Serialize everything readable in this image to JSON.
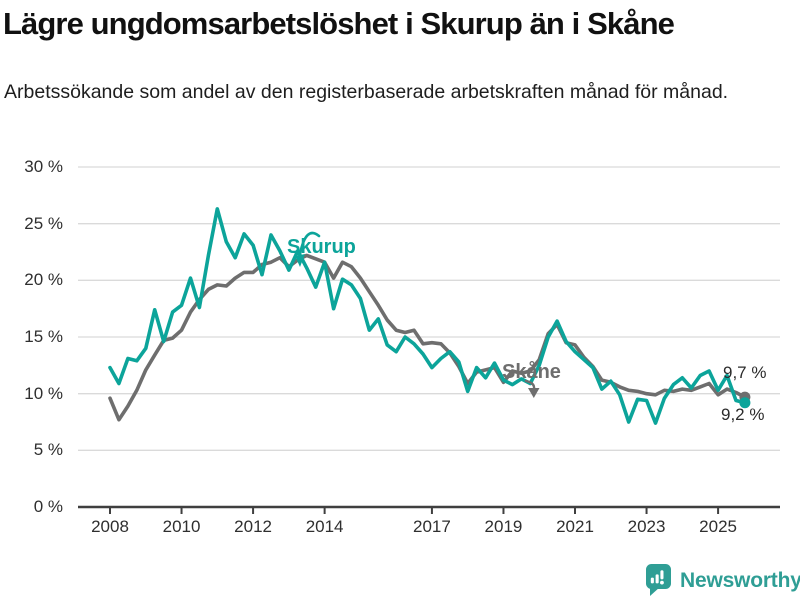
{
  "chart_data": {
    "type": "line",
    "title": "Lägre ungdomsarbetslöshet i Skurup än i Skåne",
    "subtitle": "Arbetssökande som andel av den registerbaserade arbetskraften månad för månad.",
    "unit": "%",
    "xlim": [
      2007.1,
      2026.7
    ],
    "ylim": [
      0,
      30
    ],
    "grid": true,
    "legend_position": "inline-labels",
    "colors": {
      "grid": "#dadada",
      "axis": "#3f3f3f",
      "tick_text": "#2f2f2f",
      "annotation_text": "#2b2b2b"
    },
    "y_ticks": [
      {
        "value": 0,
        "label": "0 %"
      },
      {
        "value": 5,
        "label": "5 %"
      },
      {
        "value": 10,
        "label": "10 %"
      },
      {
        "value": 15,
        "label": "15 %"
      },
      {
        "value": 20,
        "label": "20 %"
      },
      {
        "value": 25,
        "label": "25 %"
      },
      {
        "value": 30,
        "label": "30 %"
      }
    ],
    "x_ticks": [
      {
        "value": 2008,
        "label": "2008"
      },
      {
        "value": 2010,
        "label": "2010"
      },
      {
        "value": 2012,
        "label": "2012"
      },
      {
        "value": 2014,
        "label": "2014"
      },
      {
        "value": 2017,
        "label": "2017"
      },
      {
        "value": 2019,
        "label": "2019"
      },
      {
        "value": 2021,
        "label": "2021"
      },
      {
        "value": 2023,
        "label": "2023"
      },
      {
        "value": 2025,
        "label": "2025"
      }
    ],
    "series": [
      {
        "name": "Skurup",
        "color": "#0ca49a",
        "x_start": 2008.0,
        "x_step": 0.25,
        "end_label": "9,2 %",
        "end_value": 9.2,
        "values": [
          12.3,
          10.9,
          13.1,
          12.9,
          14.0,
          17.4,
          14.6,
          17.2,
          17.8,
          20.2,
          17.6,
          22.2,
          26.3,
          23.4,
          22.0,
          24.1,
          23.1,
          20.5,
          24.0,
          22.6,
          20.9,
          22.6,
          21.1,
          19.4,
          21.6,
          17.5,
          20.1,
          19.6,
          18.4,
          15.6,
          16.6,
          14.3,
          13.7,
          15.0,
          14.4,
          13.5,
          12.3,
          13.1,
          13.7,
          12.8,
          10.2,
          12.3,
          11.4,
          12.7,
          11.2,
          10.8,
          11.3,
          10.9,
          12.5,
          15.0,
          16.4,
          14.6,
          13.7,
          13.0,
          12.3,
          10.4,
          11.1,
          9.9,
          7.5,
          9.5,
          9.4,
          7.4,
          9.6,
          10.8,
          11.4,
          10.5,
          11.6,
          12.0,
          10.3,
          11.6,
          9.4,
          9.2
        ]
      },
      {
        "name": "Skåne",
        "color": "#6e6e6e",
        "x_start": 2008.0,
        "x_step": 0.25,
        "end_label": "9,7 %",
        "end_value": 9.7,
        "values": [
          9.6,
          7.7,
          8.9,
          10.3,
          12.1,
          13.4,
          14.7,
          14.9,
          15.6,
          17.2,
          18.3,
          19.2,
          19.6,
          19.5,
          20.2,
          20.7,
          20.7,
          21.4,
          21.6,
          22.0,
          21.2,
          21.8,
          22.2,
          21.9,
          21.6,
          20.2,
          21.6,
          21.2,
          20.2,
          19.0,
          17.8,
          16.5,
          15.6,
          15.4,
          15.6,
          14.4,
          14.5,
          14.4,
          13.6,
          12.4,
          10.9,
          11.9,
          12.1,
          12.3,
          11.0,
          12.0,
          11.8,
          12.0,
          13.0,
          15.3,
          16.1,
          14.5,
          14.3,
          13.2,
          12.4,
          11.2,
          11.0,
          10.6,
          10.3,
          10.2,
          10.0,
          9.9,
          10.3,
          10.2,
          10.4,
          10.3,
          10.6,
          10.9,
          9.9,
          10.4,
          10.1,
          9.7
        ]
      }
    ]
  },
  "footer": {
    "brand": "Newsworthy",
    "brand_color": "#2f9e95"
  }
}
